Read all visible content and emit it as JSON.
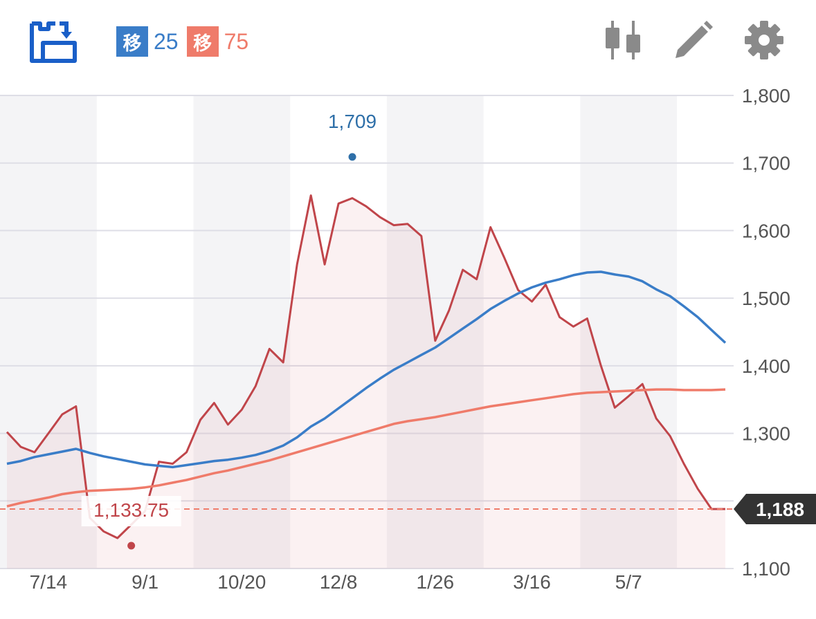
{
  "toolbar": {
    "icons": [
      "chart-switch-icon",
      "candlestick-icon",
      "pencil-icon",
      "gear-icon"
    ],
    "colors": {
      "brand": "#1a5fc8",
      "icon_gray": "#8a8a8a"
    }
  },
  "legend": {
    "ma1": {
      "badge": "移",
      "period": "25",
      "color": "#3a7dc8"
    },
    "ma2": {
      "badge": "移",
      "period": "75",
      "color": "#ef7b6a"
    }
  },
  "chart_data": {
    "type": "line",
    "y_ticks": [
      "1,800",
      "1,700",
      "1,600",
      "1,500",
      "1,400",
      "1,300",
      "1,100"
    ],
    "y_tick_values": [
      1800,
      1700,
      1600,
      1500,
      1400,
      1300,
      1100
    ],
    "ylim": [
      1100,
      1800
    ],
    "x_ticks": [
      "7/14",
      "9/1",
      "10/20",
      "12/8",
      "1/26",
      "3/16",
      "5/7"
    ],
    "x_index_range": [
      0,
      52
    ],
    "x_tick_index": [
      3,
      10,
      17,
      24,
      31,
      38,
      45
    ],
    "grid": true,
    "alternating_week_bands": true,
    "series": [
      {
        "key": "price",
        "color": "#c0454a",
        "fill": "rgba(214, 118, 124, 0.10)",
        "values": [
          1302,
          1280,
          1272,
          1300,
          1328,
          1340,
          1175,
          1155,
          1145,
          1165,
          1185,
          1258,
          1255,
          1272,
          1320,
          1345,
          1313,
          1335,
          1370,
          1425,
          1405,
          1550,
          1652,
          1550,
          1640,
          1648,
          1636,
          1620,
          1608,
          1610,
          1592,
          1437,
          1482,
          1542,
          1528,
          1605,
          1560,
          1512,
          1495,
          1520,
          1472,
          1458,
          1470,
          1400,
          1338,
          1355,
          1373,
          1322,
          1296,
          1255,
          1218,
          1188,
          1188
        ]
      },
      {
        "key": "ma25",
        "name": "25",
        "color": "#3a7dc8",
        "values": [
          1255,
          1259,
          1265,
          1269,
          1273,
          1277,
          1271,
          1266,
          1262,
          1258,
          1254,
          1252,
          1250,
          1253,
          1256,
          1259,
          1261,
          1264,
          1268,
          1274,
          1282,
          1294,
          1310,
          1322,
          1337,
          1352,
          1367,
          1381,
          1394,
          1405,
          1416,
          1427,
          1441,
          1455,
          1469,
          1484,
          1496,
          1507,
          1516,
          1523,
          1528,
          1534,
          1538,
          1539,
          1535,
          1532,
          1525,
          1513,
          1503,
          1488,
          1472,
          1453,
          1434
        ]
      },
      {
        "key": "ma75",
        "name": "75",
        "color": "#ef7b6a",
        "values": [
          1192,
          1197,
          1201,
          1205,
          1210,
          1213,
          1215,
          1216,
          1217,
          1218,
          1220,
          1223,
          1227,
          1231,
          1236,
          1241,
          1245,
          1250,
          1255,
          1260,
          1266,
          1272,
          1278,
          1284,
          1290,
          1296,
          1302,
          1308,
          1314,
          1318,
          1321,
          1324,
          1328,
          1332,
          1336,
          1340,
          1343,
          1346,
          1349,
          1352,
          1355,
          1358,
          1360,
          1361,
          1362,
          1363,
          1364,
          1365,
          1365,
          1364,
          1364,
          1364,
          1365
        ]
      }
    ],
    "annotations": {
      "high": {
        "label": "1,709",
        "value": 1709,
        "index": 25,
        "color": "#2e6fa8"
      },
      "low": {
        "label": "1,133.75",
        "value": 1133.75,
        "index": 9,
        "color": "#c0454a"
      },
      "current": {
        "label": "1,188",
        "value": 1188,
        "bg": "#333333",
        "text_color": "#ffffff"
      }
    }
  }
}
